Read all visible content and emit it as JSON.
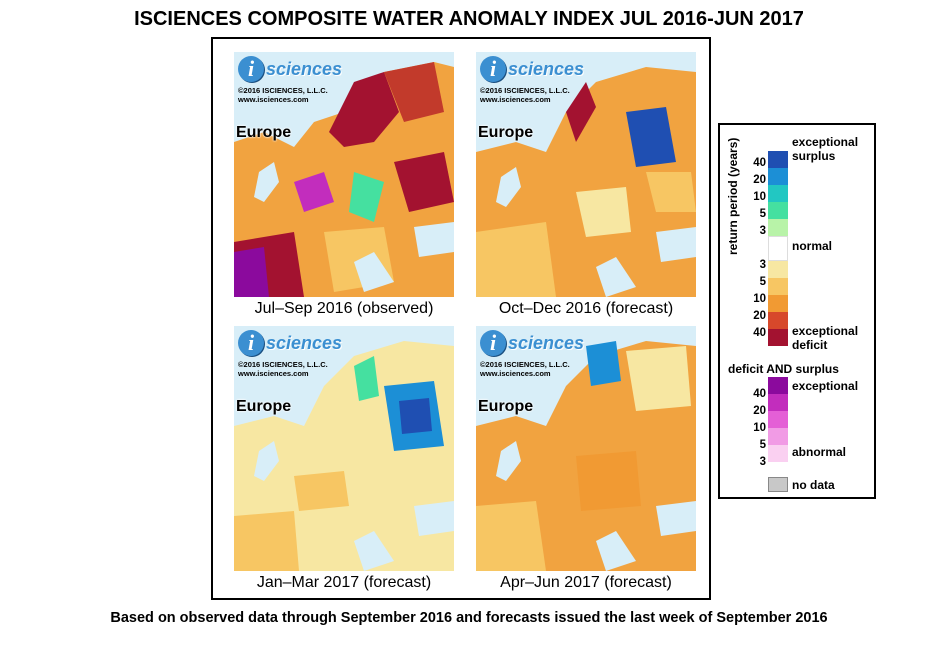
{
  "title": "ISCIENCES COMPOSITE WATER ANOMALY INDEX JUL 2016-JUN 2017",
  "footer": "Based on observed data through September 2016 and forecasts issued the last week of September 2016",
  "brand": {
    "logo_letter": "i",
    "logo_word": "sciences",
    "copyright": "©2016  ISCIENCES, L.L.C.",
    "website": "www.isciences.com"
  },
  "panels": [
    {
      "region": "Europe",
      "caption": "Jul–Sep 2016 (observed)"
    },
    {
      "region": "Europe",
      "caption": "Oct–Dec 2016 (forecast)"
    },
    {
      "region": "Europe",
      "caption": "Jan–Mar 2017 (forecast)"
    },
    {
      "region": "Europe",
      "caption": "Apr–Jun 2017 (forecast)"
    }
  ],
  "legend": {
    "axis_label": "return period (years)",
    "surplus_ticks": [
      "40",
      "20",
      "10",
      "5",
      "3"
    ],
    "deficit_ticks": [
      "3",
      "5",
      "10",
      "20",
      "40"
    ],
    "both_ticks": [
      "40",
      "20",
      "10",
      "5",
      "3"
    ],
    "exceptional_surplus": "exceptional surplus",
    "normal": "normal",
    "exceptional_deficit": "exceptional deficit",
    "both_heading": "deficit AND surplus",
    "both_exceptional": "exceptional",
    "both_abnormal": "abnormal",
    "no_data": "no data",
    "surplus_colors": [
      "#1f4fb2",
      "#1c8fd6",
      "#22c7c2",
      "#45e0a0",
      "#b8f3a8"
    ],
    "deficit_colors": [
      "#f7e7a2",
      "#f7c663",
      "#f19a33",
      "#d7482b",
      "#a31230"
    ],
    "both_colors": [
      "#8b0a9d",
      "#c22dbd",
      "#e45fd6",
      "#f19be5",
      "#fad0f1"
    ],
    "no_data_color": "#c8c8c8",
    "normal_color": "#ffffff"
  }
}
